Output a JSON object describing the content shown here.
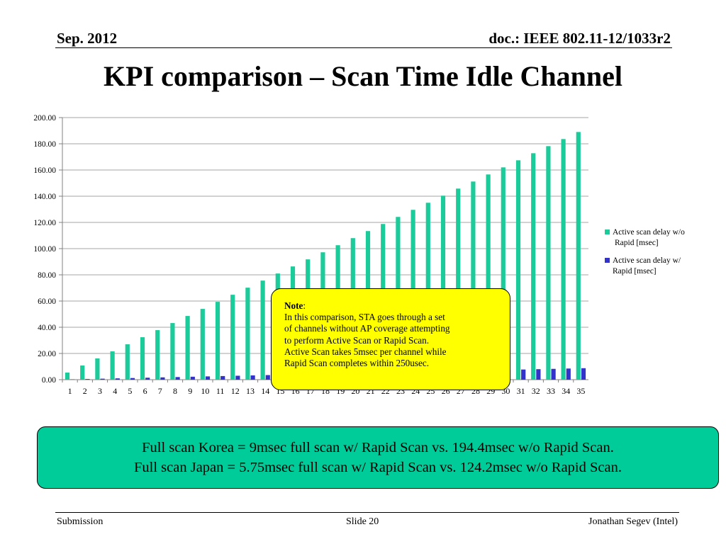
{
  "header": {
    "date": "Sep.   2012",
    "doc": "doc.: IEEE 802.11-12/1033r2"
  },
  "title": "KPI comparison – Scan Time Idle Channel",
  "note": {
    "heading": "Note",
    "colon": ":",
    "lines": [
      "In this comparison, STA goes through a set",
      "of channels without AP coverage attempting",
      "to perform Active Scan or Rapid Scan.",
      "Active Scan takes 5msec per channel while",
      "Rapid Scan completes within 250usec."
    ]
  },
  "summary": {
    "line1": "Full scan Korea = 9msec full scan w/ Rapid Scan vs. 194.4msec w/o Rapid Scan.",
    "line2": "Full scan Japan = 5.75msec full scan w/ Rapid Scan vs. 124.2msec w/o Rapid Scan."
  },
  "footer": {
    "left": "Submission",
    "center": "Slide 20",
    "right": "Jonathan Segev (Intel)"
  },
  "chart_data": {
    "type": "bar",
    "categories": [
      "1",
      "2",
      "3",
      "4",
      "5",
      "6",
      "7",
      "8",
      "9",
      "10",
      "11",
      "12",
      "13",
      "14",
      "15",
      "16",
      "17",
      "18",
      "19",
      "20",
      "21",
      "22",
      "23",
      "24",
      "25",
      "26",
      "27",
      "28",
      "29",
      "30",
      "31",
      "32",
      "33",
      "34",
      "35"
    ],
    "series": [
      {
        "name": "Active scan delay w/o Rapid [msec]",
        "legend_lines": [
          "Active scan delay w/o",
          "Rapid [msec]"
        ],
        "color": "#1ccb9a",
        "values": [
          5.4,
          10.8,
          16.2,
          21.6,
          27,
          32.4,
          37.8,
          43.2,
          48.6,
          54,
          59.4,
          64.8,
          70.2,
          75.6,
          81,
          86.4,
          91.8,
          97.2,
          102.6,
          108,
          113.4,
          118.8,
          124.2,
          129.6,
          135,
          140.4,
          145.8,
          151.2,
          156.6,
          162,
          167.4,
          172.8,
          178.2,
          183.6,
          189
        ]
      },
      {
        "name": "Active scan delay w/ Rapid [msec]",
        "legend_lines": [
          "Active scan delay w/",
          "Rapid [msec]"
        ],
        "color": "#3333cc",
        "values": [
          0.25,
          0.5,
          0.75,
          1,
          1.25,
          1.5,
          1.75,
          2,
          2.25,
          2.5,
          2.75,
          3,
          3.25,
          3.5,
          3.75,
          4,
          4.25,
          4.5,
          4.75,
          5,
          5.25,
          5.5,
          5.75,
          6,
          6.25,
          6.5,
          6.75,
          7,
          7.25,
          7.5,
          7.75,
          8,
          8.25,
          8.5,
          8.75
        ]
      }
    ],
    "yticks": [
      "0.00",
      "20.00",
      "40.00",
      "60.00",
      "80.00",
      "100.00",
      "120.00",
      "140.00",
      "160.00",
      "180.00",
      "200.00"
    ],
    "ylim": [
      0,
      200
    ],
    "grid": true,
    "legend": "right"
  }
}
